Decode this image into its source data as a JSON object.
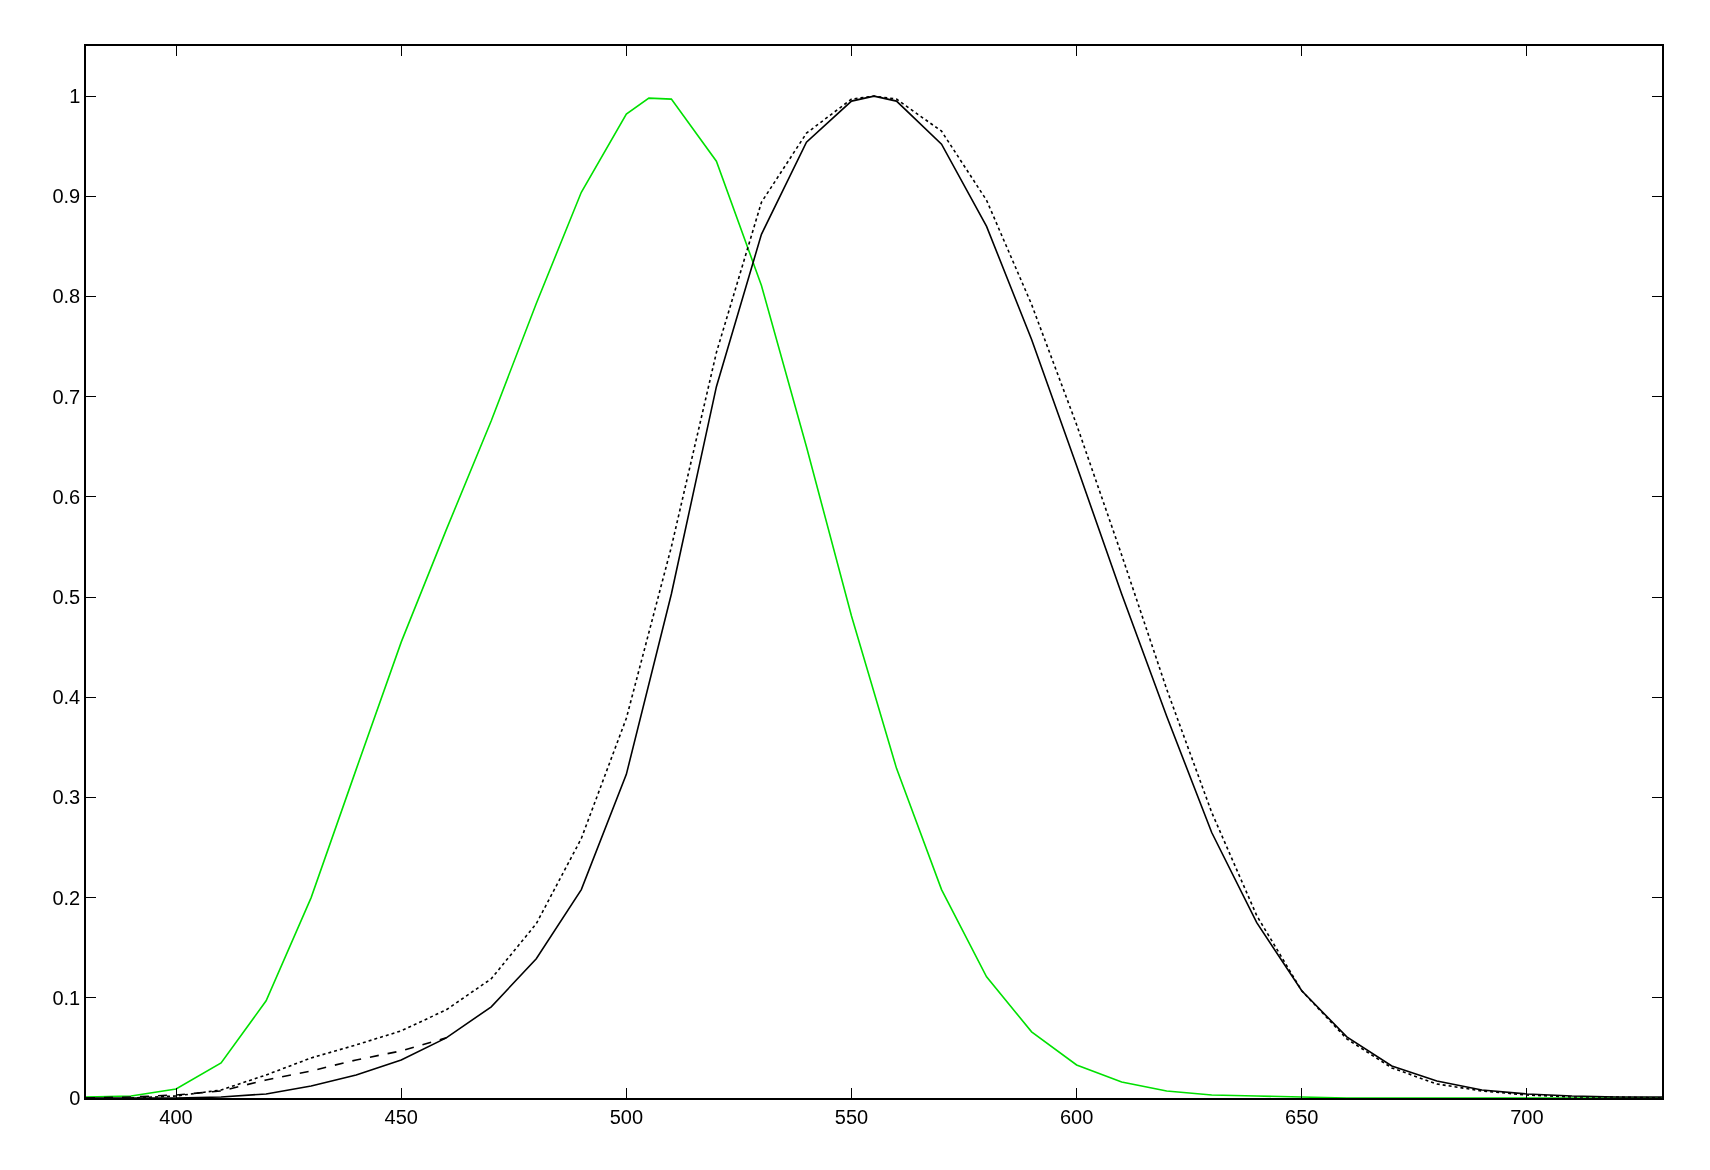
{
  "chart_data": {
    "type": "line",
    "xlim": [
      380,
      730
    ],
    "ylim": [
      0,
      1.05
    ],
    "xticks": [
      400,
      450,
      500,
      550,
      600,
      650,
      700
    ],
    "yticks": [
      0,
      0.1,
      0.2,
      0.3,
      0.4,
      0.5,
      0.6,
      0.7,
      0.8,
      0.9,
      1
    ],
    "marker": "none",
    "series": [
      {
        "color": "#00e000",
        "line_style": "solid",
        "x": [
          380,
          390,
          400,
          410,
          420,
          430,
          440,
          450,
          460,
          470,
          480,
          490,
          500,
          505,
          510,
          520,
          530,
          540,
          550,
          560,
          570,
          580,
          590,
          600,
          610,
          620,
          630,
          640,
          650,
          660,
          670,
          680,
          690,
          700,
          710,
          720,
          730
        ],
        "values": [
          0.001,
          0.002,
          0.009,
          0.035,
          0.097,
          0.2,
          0.328,
          0.455,
          0.567,
          0.676,
          0.793,
          0.904,
          0.982,
          0.998,
          0.997,
          0.935,
          0.811,
          0.65,
          0.481,
          0.329,
          0.208,
          0.121,
          0.066,
          0.033,
          0.016,
          0.007,
          0.003,
          0.002,
          0.001,
          0,
          0,
          0,
          0,
          0,
          0,
          0,
          0
        ]
      },
      {
        "color": "#000000",
        "line_style": "solid",
        "x": [
          380,
          390,
          400,
          410,
          420,
          430,
          440,
          450,
          460,
          470,
          480,
          490,
          500,
          510,
          520,
          530,
          540,
          550,
          555,
          560,
          570,
          580,
          590,
          600,
          610,
          620,
          630,
          640,
          650,
          660,
          670,
          680,
          690,
          700,
          710,
          720,
          730
        ],
        "values": [
          0,
          0,
          0,
          0.001,
          0.004,
          0.012,
          0.023,
          0.038,
          0.06,
          0.091,
          0.139,
          0.208,
          0.323,
          0.503,
          0.71,
          0.862,
          0.954,
          0.995,
          1,
          0.995,
          0.952,
          0.87,
          0.757,
          0.631,
          0.503,
          0.381,
          0.265,
          0.175,
          0.107,
          0.061,
          0.032,
          0.017,
          0.008,
          0.004,
          0.002,
          0.001,
          0.001
        ]
      },
      {
        "color": "#000000",
        "line_style": "dashed",
        "x": [
          380,
          390,
          400,
          410,
          420,
          430,
          440,
          450,
          460
        ],
        "values": [
          0,
          0.001,
          0.003,
          0.007,
          0.018,
          0.027,
          0.038,
          0.047,
          0.06
        ]
      },
      {
        "color": "#000000",
        "line_style": "dotted",
        "x": [
          390,
          400,
          410,
          420,
          430,
          440,
          450,
          460,
          470,
          480,
          490,
          500,
          510,
          520,
          530,
          540,
          550,
          555,
          560,
          570,
          580,
          590,
          600,
          610,
          620,
          630,
          640,
          650,
          660,
          670,
          680,
          690,
          700,
          710,
          720,
          730
        ],
        "values": [
          0,
          0.002,
          0.008,
          0.023,
          0.04,
          0.053,
          0.067,
          0.088,
          0.119,
          0.174,
          0.259,
          0.379,
          0.55,
          0.744,
          0.894,
          0.963,
          0.997,
          1,
          0.997,
          0.965,
          0.896,
          0.792,
          0.672,
          0.542,
          0.408,
          0.285,
          0.182,
          0.107,
          0.059,
          0.03,
          0.014,
          0.007,
          0.003,
          0.001,
          0.001,
          0
        ]
      }
    ]
  }
}
